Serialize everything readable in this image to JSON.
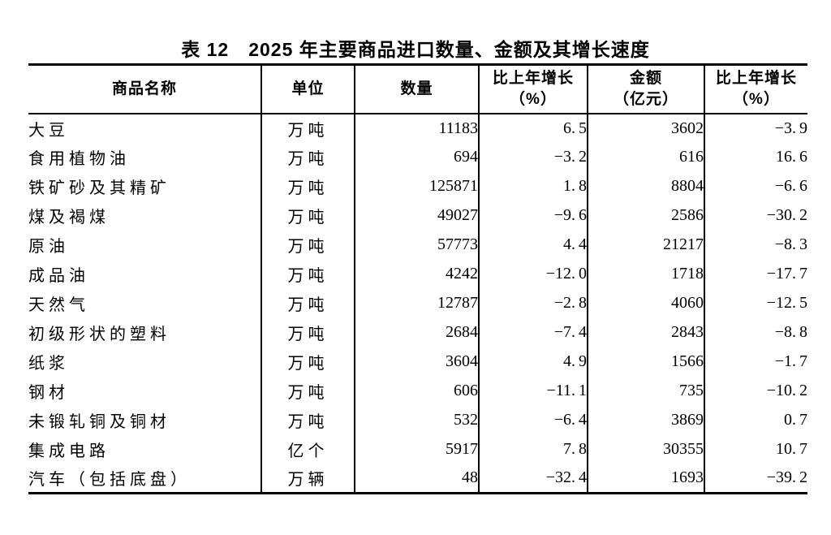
{
  "title": {
    "prefix": "表 12",
    "text": "2025 年主要商品进口数量、金额及其增长速度"
  },
  "table": {
    "columns": [
      {
        "id": "name",
        "label_lines": [
          "商品名称"
        ]
      },
      {
        "id": "unit",
        "label_lines": [
          "单位"
        ]
      },
      {
        "id": "quantity",
        "label_lines": [
          "数量"
        ]
      },
      {
        "id": "quantity_growth",
        "label_lines": [
          "比上年增长",
          "（%）"
        ]
      },
      {
        "id": "amount",
        "label_lines": [
          "金额",
          "（亿元）"
        ]
      },
      {
        "id": "amount_growth",
        "label_lines": [
          "比上年增长",
          "（%）"
        ]
      }
    ],
    "rows": [
      {
        "name": "大豆",
        "unit": "万吨",
        "quantity": "11183",
        "quantity_growth": "6.5",
        "amount": "3602",
        "amount_growth": "-3.9"
      },
      {
        "name": "食用植物油",
        "unit": "万吨",
        "quantity": "694",
        "quantity_growth": "-3.2",
        "amount": "616",
        "amount_growth": "16.6"
      },
      {
        "name": "铁矿砂及其精矿",
        "unit": "万吨",
        "quantity": "125871",
        "quantity_growth": "1.8",
        "amount": "8804",
        "amount_growth": "-6.6"
      },
      {
        "name": "煤及褐煤",
        "unit": "万吨",
        "quantity": "49027",
        "quantity_growth": "-9.6",
        "amount": "2586",
        "amount_growth": "-30.2"
      },
      {
        "name": "原油",
        "unit": "万吨",
        "quantity": "57773",
        "quantity_growth": "4.4",
        "amount": "21217",
        "amount_growth": "-8.3"
      },
      {
        "name": "成品油",
        "unit": "万吨",
        "quantity": "4242",
        "quantity_growth": "-12.0",
        "amount": "1718",
        "amount_growth": "-17.7"
      },
      {
        "name": "天然气",
        "unit": "万吨",
        "quantity": "12787",
        "quantity_growth": "-2.8",
        "amount": "4060",
        "amount_growth": "-12.5"
      },
      {
        "name": "初级形状的塑料",
        "unit": "万吨",
        "quantity": "2684",
        "quantity_growth": "-7.4",
        "amount": "2843",
        "amount_growth": "-8.8"
      },
      {
        "name": "纸浆",
        "unit": "万吨",
        "quantity": "3604",
        "quantity_growth": "4.9",
        "amount": "1566",
        "amount_growth": "-1.7"
      },
      {
        "name": "钢材",
        "unit": "万吨",
        "quantity": "606",
        "quantity_growth": "-11.1",
        "amount": "735",
        "amount_growth": "-10.2"
      },
      {
        "name": "未锻轧铜及铜材",
        "unit": "万吨",
        "quantity": "532",
        "quantity_growth": "-6.4",
        "amount": "3869",
        "amount_growth": "0.7"
      },
      {
        "name": "集成电路",
        "unit": "亿个",
        "quantity": "5917",
        "quantity_growth": "7.8",
        "amount": "30355",
        "amount_growth": "10.7"
      },
      {
        "name": "汽车（包括底盘）",
        "unit": "万辆",
        "quantity": "48",
        "quantity_growth": "-32.4",
        "amount": "1693",
        "amount_growth": "-39.2"
      }
    ]
  },
  "colors": {
    "text": "#000000",
    "background": "#ffffff",
    "rule": "#000000"
  }
}
